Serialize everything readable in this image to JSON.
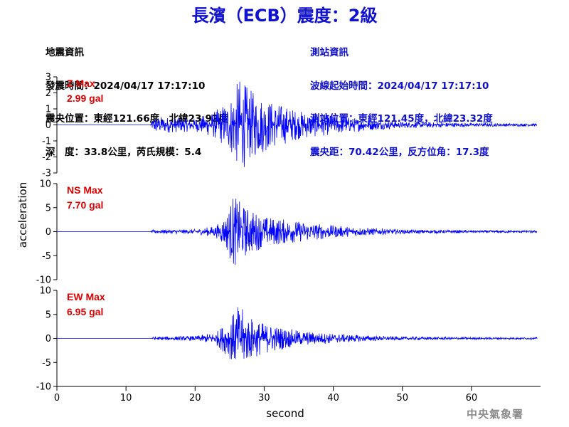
{
  "header": {
    "title": "長濱（ECB）震度：2級"
  },
  "quake_info": {
    "heading": "地震資訊",
    "origin_time": "發震時間：2024/04/17 17:17:10",
    "epicenter": "震央位置：東經121.66度，北緯23.92度",
    "depth_magnitude": "深　度：33.8公里，芮氏規模：5.4"
  },
  "station_info": {
    "heading": "測站資訊",
    "arrival_time": "波線起始時間：2024/04/17 17:17:10",
    "location": "測站位置：東經121.45度，北緯23.32度",
    "distance_azimuth": "震央距：70.42公里，反方位角：17.3度"
  },
  "footer": {
    "agency": "中央氣象署"
  },
  "colors": {
    "title": "#1010d0",
    "station_text": "#1010d0",
    "trace": "#0000ff",
    "max_label": "#e00000",
    "axis": "#000000",
    "agency": "#8a8a8a"
  },
  "chart_data": {
    "type": "line",
    "xlabel": "second",
    "ylabel": "acceleration",
    "xlim": [
      0,
      70
    ],
    "xticks": [
      0,
      10,
      20,
      30,
      40,
      50,
      60
    ],
    "grid": false,
    "panels": [
      {
        "name": "Z",
        "max_label": "Z Max",
        "max_value": "2.99 gal",
        "ylim": [
          -3,
          3
        ],
        "yticks": [
          -3,
          -2,
          -1,
          0,
          1,
          2,
          3
        ],
        "onset": 13.5,
        "envelope": [
          [
            0,
            0
          ],
          [
            13.5,
            0
          ],
          [
            14,
            0.55
          ],
          [
            20,
            0.4
          ],
          [
            23,
            0.9
          ],
          [
            25,
            1.7
          ],
          [
            26.5,
            2.99
          ],
          [
            28,
            2.2
          ],
          [
            31,
            1.5
          ],
          [
            35,
            0.9
          ],
          [
            40,
            0.6
          ],
          [
            45,
            0.35
          ],
          [
            50,
            0.2
          ],
          [
            60,
            0.12
          ],
          [
            70,
            0.08
          ]
        ]
      },
      {
        "name": "NS",
        "max_label": "NS Max",
        "max_value": "7.70 gal",
        "ylim": [
          -10,
          10
        ],
        "yticks": [
          -10,
          -5,
          0,
          5,
          10
        ],
        "onset": 13.5,
        "envelope": [
          [
            0,
            0
          ],
          [
            13.5,
            0
          ],
          [
            14,
            0.4
          ],
          [
            20,
            0.5
          ],
          [
            23,
            1.2
          ],
          [
            24.5,
            3.5
          ],
          [
            25.5,
            7.7
          ],
          [
            27,
            5.5
          ],
          [
            30,
            3.2
          ],
          [
            35,
            2.2
          ],
          [
            40,
            1.3
          ],
          [
            45,
            0.8
          ],
          [
            50,
            0.45
          ],
          [
            60,
            0.3
          ],
          [
            70,
            0.25
          ]
        ]
      },
      {
        "name": "EW",
        "max_label": "EW Max",
        "max_value": "6.95 gal",
        "ylim": [
          -10,
          10
        ],
        "yticks": [
          -10,
          -5,
          0,
          5,
          10
        ],
        "onset": 13.5,
        "envelope": [
          [
            0,
            0
          ],
          [
            13.5,
            0
          ],
          [
            14,
            0.35
          ],
          [
            20,
            0.5
          ],
          [
            23,
            1.3
          ],
          [
            25,
            4.2
          ],
          [
            26.3,
            6.95
          ],
          [
            28,
            4.5
          ],
          [
            30,
            3.2
          ],
          [
            35,
            1.6
          ],
          [
            40,
            1.0
          ],
          [
            45,
            0.6
          ],
          [
            50,
            0.35
          ],
          [
            60,
            0.25
          ],
          [
            70,
            0.2
          ]
        ]
      }
    ]
  }
}
